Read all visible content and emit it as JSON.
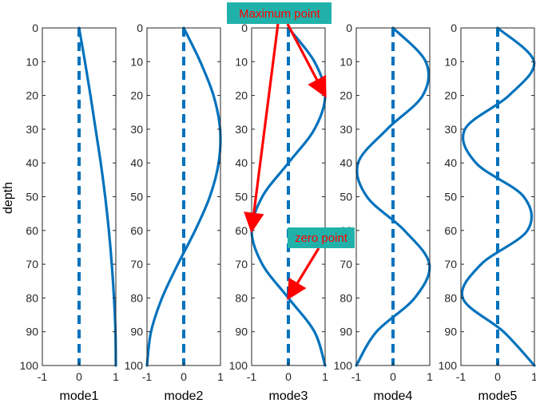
{
  "chart_data": {
    "type": "line",
    "ylabel": "depth",
    "yticks": [
      "0",
      "10",
      "20",
      "30",
      "40",
      "50",
      "60",
      "70",
      "80",
      "90",
      "100"
    ],
    "xticks": [
      "-1",
      "0",
      "1"
    ],
    "xlim": [
      -1,
      1
    ],
    "ylim": [
      0,
      100
    ],
    "y_reversed": true,
    "grid": false,
    "line_color": "#0072bd",
    "zero_line_color": "#0072bd",
    "depth": [
      0,
      10,
      20,
      30,
      40,
      50,
      60,
      70,
      80,
      90,
      100
    ],
    "series": [
      {
        "name": "mode1",
        "values": [
          0.0,
          0.16,
          0.31,
          0.45,
          0.59,
          0.71,
          0.81,
          0.89,
          0.95,
          0.99,
          1.0
        ]
      },
      {
        "name": "mode2",
        "values": [
          0.0,
          0.45,
          0.81,
          0.99,
          0.95,
          0.71,
          0.31,
          -0.16,
          -0.59,
          -0.89,
          -1.0
        ]
      },
      {
        "name": "mode3",
        "values": [
          0.0,
          0.71,
          1.0,
          0.71,
          0.0,
          -0.71,
          -1.0,
          -0.71,
          0.0,
          0.71,
          1.0
        ]
      },
      {
        "name": "mode4",
        "values": [
          0.0,
          0.89,
          0.81,
          -0.16,
          -0.95,
          -0.71,
          0.31,
          0.99,
          0.59,
          -0.45,
          -1.0
        ]
      },
      {
        "name": "mode5",
        "values": [
          0.0,
          0.99,
          0.31,
          -0.89,
          -0.59,
          0.71,
          0.81,
          -0.45,
          -0.95,
          0.16,
          1.0
        ]
      }
    ],
    "annotations": [
      {
        "label": "Maximum point",
        "background": "#20b2aa",
        "text_color": "#ff0000",
        "arrows_to": [
          {
            "x": 1.0,
            "y": 20.0
          },
          {
            "x": -1.0,
            "y": 60.0
          }
        ]
      },
      {
        "label": "zero point",
        "background": "#20b2aa",
        "text_color": "#ff0000",
        "arrows_to": [
          {
            "x": 0.0,
            "y": 80.0
          }
        ]
      }
    ],
    "arrow_color": "#ff0000"
  }
}
